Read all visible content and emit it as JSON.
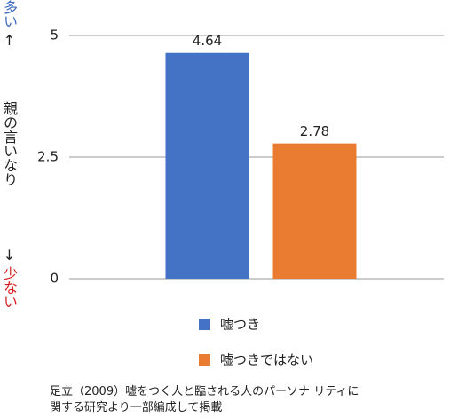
{
  "chart_data": {
    "type": "bar",
    "y_label": {
      "high": "多い",
      "up_arrow": "↑",
      "main": "親の言いなり",
      "down_arrow": "↓",
      "low": "少ない"
    },
    "categories": [
      null
    ],
    "series": [
      {
        "name": "嘘つき",
        "color": "#4472c4",
        "values": [
          4.64
        ]
      },
      {
        "name": "嘘つきではない",
        "color": "#e97c30",
        "values": [
          2.78
        ]
      }
    ],
    "ylim": [
      0,
      5
    ],
    "yticks": [
      0,
      2.5,
      5
    ],
    "grid": true,
    "source": [
      "足立（2009）嘘をつく人と臨される人のパーソナ リティに",
      "関する研究より一部編成して掲載"
    ]
  }
}
